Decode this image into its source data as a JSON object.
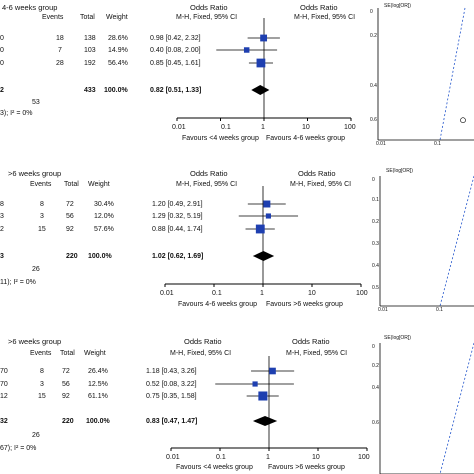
{
  "chart_data": [
    {
      "type": "forest",
      "group_header": "4-6 weeks group",
      "col_events": "Events",
      "col_total": "Total",
      "col_weight": "Weight",
      "col_or_title": "Odds Ratio",
      "col_or_method": "M-H, Fixed, 95% CI",
      "plot_title": "Odds Ratio",
      "plot_method": "M-H, Fixed, 95% CI",
      "left_fragments": [
        "0",
        "0",
        "0",
        "2"
      ],
      "rows": [
        {
          "events": "18",
          "total": "138",
          "weight": "28.6%",
          "ci_text": "0.98 [0.42, 2.32]",
          "or": 0.98,
          "lo": 0.42,
          "hi": 2.32
        },
        {
          "events": "7",
          "total": "103",
          "weight": "14.9%",
          "ci_text": "0.40 [0.08, 2.00]",
          "or": 0.4,
          "lo": 0.08,
          "hi": 2.0
        },
        {
          "events": "28",
          "total": "192",
          "weight": "56.4%",
          "ci_text": "0.85 [0.45, 1.61]",
          "or": 0.85,
          "lo": 0.45,
          "hi": 1.61
        }
      ],
      "total": {
        "total": "433",
        "weight": "100.0%",
        "ci_text": "0.82 [0.51, 1.33]",
        "or": 0.82,
        "lo": 0.51,
        "hi": 1.33
      },
      "events_total": "53",
      "heterogeneity_fragment": "3); I² = 0%",
      "x_ticks": [
        "0.01",
        "0.1",
        "1",
        "10",
        "100"
      ],
      "x_tick_values": [
        0.01,
        0.1,
        1,
        10,
        100
      ],
      "favours_left": "Favours <4 weeks group",
      "favours_right": "Favours 4-6 weeks group"
    },
    {
      "type": "forest",
      "group_header": ">6 weeks group",
      "col_events": "Events",
      "col_total": "Total",
      "col_weight": "Weight",
      "col_or_title": "Odds Ratio",
      "col_or_method": "M-H, Fixed, 95% CI",
      "plot_title": "Odds Ratio",
      "plot_method": "M-H, Fixed, 95% CI",
      "left_fragments": [
        "8",
        "3",
        "2",
        "3"
      ],
      "rows": [
        {
          "events": "8",
          "total": "72",
          "weight": "30.4%",
          "ci_text": "1.20 [0.49, 2.91]",
          "or": 1.2,
          "lo": 0.49,
          "hi": 2.91
        },
        {
          "events": "3",
          "total": "56",
          "weight": "12.0%",
          "ci_text": "1.29 [0.32, 5.19]",
          "or": 1.29,
          "lo": 0.32,
          "hi": 5.19
        },
        {
          "events": "15",
          "total": "92",
          "weight": "57.6%",
          "ci_text": "0.88 [0.44, 1.74]",
          "or": 0.88,
          "lo": 0.44,
          "hi": 1.74
        }
      ],
      "total": {
        "total": "220",
        "weight": "100.0%",
        "ci_text": "1.02 [0.62, 1.69]",
        "or": 1.02,
        "lo": 0.62,
        "hi": 1.69
      },
      "events_total": "26",
      "heterogeneity_fragment": "11); I² = 0%",
      "x_ticks": [
        "0.01",
        "0.1",
        "1",
        "10",
        "100"
      ],
      "x_tick_values": [
        0.01,
        0.1,
        1,
        10,
        100
      ],
      "favours_left": "Favours 4-6 weeks group",
      "favours_right": "Favours >6 weeks group"
    },
    {
      "type": "forest",
      "group_header": ">6 weeks group",
      "col_events": "Events",
      "col_total": "Total",
      "col_weight": "Weight",
      "col_or_title": "Odds Ratio",
      "col_or_method": "M-H, Fixed, 95% CI",
      "plot_title": "Odds Ratio",
      "plot_method": "M-H, Fixed, 95% CI",
      "left_fragments": [
        "70",
        "70",
        "12",
        "32"
      ],
      "rows": [
        {
          "events": "8",
          "total": "72",
          "weight": "26.4%",
          "ci_text": "1.18 [0.43, 3.26]",
          "or": 1.18,
          "lo": 0.43,
          "hi": 3.26
        },
        {
          "events": "3",
          "total": "56",
          "weight": "12.5%",
          "ci_text": "0.52 [0.08, 3.22]",
          "or": 0.52,
          "lo": 0.08,
          "hi": 3.22
        },
        {
          "events": "15",
          "total": "92",
          "weight": "61.1%",
          "ci_text": "0.75 [0.35, 1.58]",
          "or": 0.75,
          "lo": 0.35,
          "hi": 1.58
        }
      ],
      "total": {
        "total": "220",
        "weight": "100.0%",
        "ci_text": "0.83 [0.47, 1.47]",
        "or": 0.83,
        "lo": 0.47,
        "hi": 1.47
      },
      "events_total": "26",
      "heterogeneity_fragment": "67); I² = 0%",
      "x_ticks": [
        "0.01",
        "0.1",
        "1",
        "10",
        "100"
      ],
      "x_tick_values": [
        0.01,
        0.1,
        1,
        10,
        100
      ],
      "favours_left": "Favours <4 weeks group",
      "favours_right": "Favours >6 weeks group"
    },
    {
      "type": "funnel",
      "y_label": "SE(log[OR])",
      "y_ticks": [
        "0",
        "0.2",
        "0.4",
        "0.6"
      ],
      "y_tick_values": [
        0,
        0.2,
        0.4,
        0.6
      ],
      "x_ticks_visible": [
        "0.01",
        "0.1"
      ],
      "points": [
        {
          "se": 0.6
        }
      ]
    },
    {
      "type": "funnel",
      "y_label": "SE(log[OR])",
      "y_ticks": [
        "0",
        "0.1",
        "0.2",
        "0.3",
        "0.4",
        "0.5"
      ],
      "y_tick_values": [
        0,
        0.1,
        0.2,
        0.3,
        0.4,
        0.5
      ],
      "x_ticks_visible": [
        "0.01",
        "0.1"
      ],
      "points": []
    },
    {
      "type": "funnel",
      "y_label": "SE(log[OR])",
      "y_ticks": [
        "0",
        "0.2",
        "0.4",
        "0.6"
      ],
      "y_tick_values": [
        0,
        0.2,
        0.4,
        0.6
      ],
      "x_ticks_visible": [],
      "points": []
    }
  ]
}
